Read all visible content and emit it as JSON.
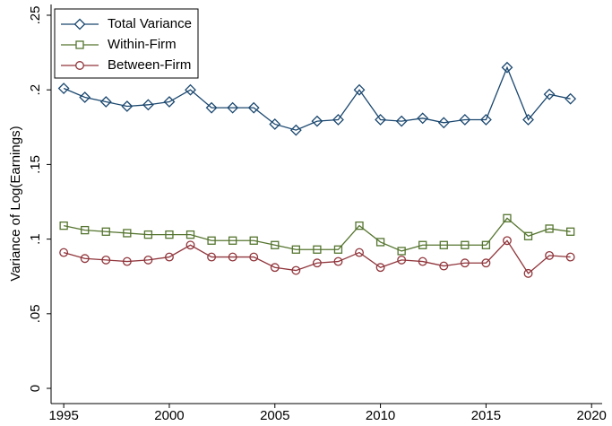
{
  "chart_data": {
    "type": "line",
    "y_label": "Variance of Log(Earnings)",
    "x": [
      1995,
      1996,
      1997,
      1998,
      1999,
      2000,
      2001,
      2002,
      2003,
      2004,
      2005,
      2006,
      2007,
      2008,
      2009,
      2010,
      2011,
      2012,
      2013,
      2014,
      2015,
      2016,
      2017,
      2018,
      2019
    ],
    "series": [
      {
        "name": "Total Variance",
        "color": "#1a476f",
        "marker": "diamond",
        "values": [
          0.201,
          0.195,
          0.192,
          0.189,
          0.19,
          0.192,
          0.2,
          0.188,
          0.188,
          0.188,
          0.177,
          0.173,
          0.179,
          0.18,
          0.2,
          0.18,
          0.179,
          0.181,
          0.178,
          0.18,
          0.18,
          0.215,
          0.18,
          0.197,
          0.194
        ]
      },
      {
        "name": "Within-Firm",
        "color": "#55752f",
        "marker": "square",
        "values": [
          0.109,
          0.106,
          0.105,
          0.104,
          0.103,
          0.103,
          0.103,
          0.099,
          0.099,
          0.099,
          0.096,
          0.093,
          0.093,
          0.093,
          0.109,
          0.098,
          0.092,
          0.096,
          0.096,
          0.096,
          0.096,
          0.114,
          0.102,
          0.107,
          0.105
        ]
      },
      {
        "name": "Between-Firm",
        "color": "#90353b",
        "marker": "circle",
        "values": [
          0.091,
          0.087,
          0.086,
          0.085,
          0.086,
          0.088,
          0.096,
          0.088,
          0.088,
          0.088,
          0.081,
          0.079,
          0.084,
          0.085,
          0.091,
          0.081,
          0.086,
          0.085,
          0.082,
          0.084,
          0.084,
          0.099,
          0.077,
          0.089,
          0.088
        ]
      }
    ],
    "xlim": [
      1994.4,
      2020.5
    ],
    "xticks": [
      1995,
      2000,
      2005,
      2010,
      2015,
      2020
    ],
    "ylim": [
      -0.0102,
      0.2572
    ],
    "yticks": [
      0,
      {
        "value": 0.05,
        "label": ".05"
      },
      {
        "value": 0.1,
        "label": ".1"
      },
      {
        "value": 0.15,
        "label": ".15"
      },
      {
        "value": 0.2,
        "label": ".2"
      },
      {
        "value": 0.25,
        "label": ".25"
      }
    ],
    "legend": "top-left",
    "grid": false
  }
}
